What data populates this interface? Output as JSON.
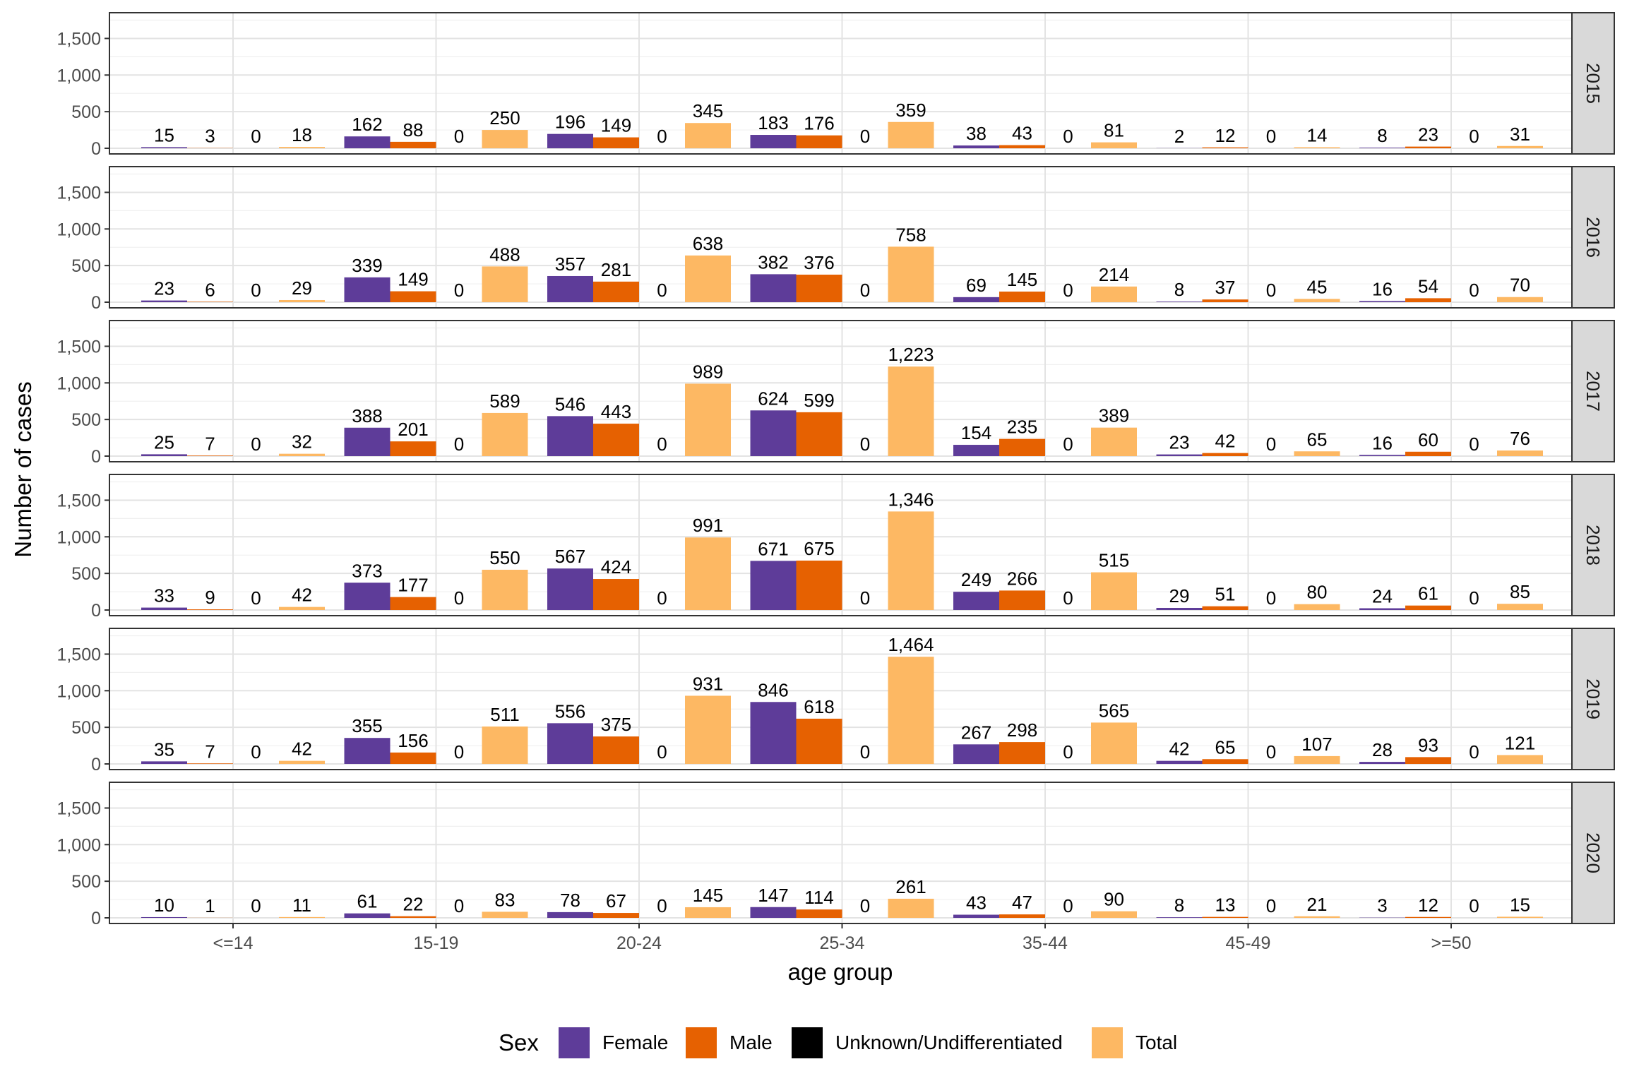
{
  "chart_data": {
    "type": "bar",
    "ylabel": "Number of cases",
    "xlabel": "age group",
    "ylim": [
      0,
      1800
    ],
    "y_ticks": [
      0,
      500,
      1000,
      1500
    ],
    "y_tick_labels": [
      "0",
      "500",
      "1,000",
      "1,500"
    ],
    "grid": true,
    "legend_position": "bottom",
    "legend_title": "Sex",
    "categories": [
      "<=14",
      "15-19",
      "20-24",
      "25-34",
      "35-44",
      "45-49",
      ">=50"
    ],
    "series_names": [
      "Female",
      "Male",
      "Unknown/Undifferentiated",
      "Total"
    ],
    "colors": {
      "Female": "#5e3c99",
      "Male": "#e66101",
      "Unknown/Undifferentiated": "#000000",
      "Total": "#fdb863"
    },
    "panels": [
      {
        "year": "2015",
        "values": {
          "Female": [
            15,
            162,
            196,
            183,
            38,
            2,
            8
          ],
          "Male": [
            3,
            88,
            149,
            176,
            43,
            12,
            23
          ],
          "Unknown/Undifferentiated": [
            0,
            0,
            0,
            0,
            0,
            0,
            0
          ],
          "Total": [
            18,
            250,
            345,
            359,
            81,
            14,
            31
          ]
        }
      },
      {
        "year": "2016",
        "values": {
          "Female": [
            23,
            339,
            357,
            382,
            69,
            8,
            16
          ],
          "Male": [
            6,
            149,
            281,
            376,
            145,
            37,
            54
          ],
          "Unknown/Undifferentiated": [
            0,
            0,
            0,
            0,
            0,
            0,
            0
          ],
          "Total": [
            29,
            488,
            638,
            758,
            214,
            45,
            70
          ]
        }
      },
      {
        "year": "2017",
        "values": {
          "Female": [
            25,
            388,
            546,
            624,
            154,
            23,
            16
          ],
          "Male": [
            7,
            201,
            443,
            599,
            235,
            42,
            60
          ],
          "Unknown/Undifferentiated": [
            0,
            0,
            0,
            0,
            0,
            0,
            0
          ],
          "Total": [
            32,
            589,
            989,
            1223,
            389,
            65,
            76
          ]
        }
      },
      {
        "year": "2018",
        "values": {
          "Female": [
            33,
            373,
            567,
            671,
            249,
            29,
            24
          ],
          "Male": [
            9,
            177,
            424,
            675,
            266,
            51,
            61
          ],
          "Unknown/Undifferentiated": [
            0,
            0,
            0,
            0,
            0,
            0,
            0
          ],
          "Total": [
            42,
            550,
            991,
            1346,
            515,
            80,
            85
          ]
        }
      },
      {
        "year": "2019",
        "values": {
          "Female": [
            35,
            355,
            556,
            846,
            267,
            42,
            28
          ],
          "Male": [
            7,
            156,
            375,
            618,
            298,
            65,
            93
          ],
          "Unknown/Undifferentiated": [
            0,
            0,
            0,
            0,
            0,
            0,
            0
          ],
          "Total": [
            42,
            511,
            931,
            1464,
            565,
            107,
            121
          ]
        }
      },
      {
        "year": "2020",
        "values": {
          "Female": [
            10,
            61,
            78,
            147,
            43,
            8,
            3
          ],
          "Male": [
            1,
            22,
            67,
            114,
            47,
            13,
            12
          ],
          "Unknown/Undifferentiated": [
            0,
            0,
            0,
            0,
            0,
            0,
            0
          ],
          "Total": [
            11,
            83,
            145,
            261,
            90,
            21,
            15
          ]
        }
      }
    ]
  }
}
